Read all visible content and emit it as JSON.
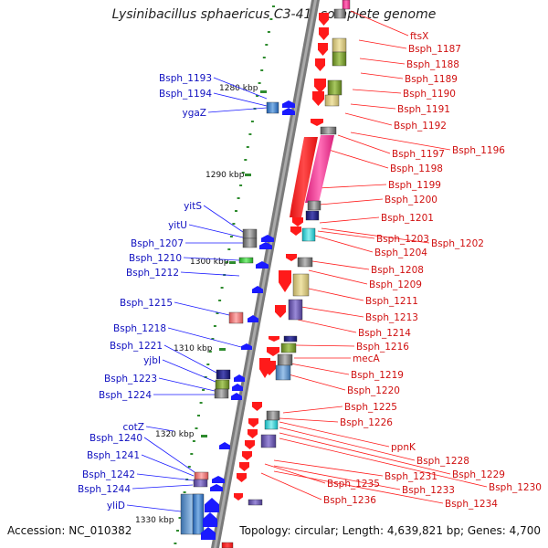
{
  "title": "Lysinibacillus sphaericus C3-41, complete genome",
  "footer": {
    "accession": "Accession: NC_010382",
    "topology": "Topology: circular; Length: 4,639,821 bp; Genes: 4,700"
  },
  "colors": {
    "forward_gene": "#1a1aff",
    "reverse_gene": "#ff1a1a",
    "backbone": "#7a7a7a",
    "tick": "#2e8b2e",
    "forward_label": "#1010c0",
    "reverse_label": "#d01010"
  },
  "scale_labels": [
    "1280 kbp",
    "1290 kbp",
    "1300 kbp",
    "1310 kbp",
    "1320 kbp",
    "1330 kbp"
  ],
  "forward_labels": [
    "Bsph_1193",
    "Bsph_1194",
    "ygaZ",
    "yitS",
    "yitU",
    "Bsph_1207",
    "Bsph_1210",
    "Bsph_1212",
    "Bsph_1215",
    "Bsph_1218",
    "Bsph_1221",
    "yjbI",
    "Bsph_1223",
    "Bsph_1224",
    "cotZ",
    "Bsph_1240",
    "Bsph_1241",
    "Bsph_1242",
    "Bsph_1244",
    "yliD"
  ],
  "reverse_labels": [
    "ftsX",
    "Bsph_1187",
    "Bsph_1188",
    "Bsph_1189",
    "Bsph_1190",
    "Bsph_1191",
    "Bsph_1192",
    "Bsph_1196",
    "Bsph_1197",
    "Bsph_1198",
    "Bsph_1199",
    "Bsph_1200",
    "Bsph_1201",
    "Bsph_1202",
    "Bsph_1203",
    "Bsph_1204",
    "Bsph_1208",
    "Bsph_1209",
    "Bsph_1211",
    "Bsph_1213",
    "Bsph_1214",
    "Bsph_1216",
    "mecA",
    "Bsph_1219",
    "Bsph_1220",
    "Bsph_1225",
    "Bsph_1226",
    "ppnK",
    "Bsph_1228",
    "Bsph_1229",
    "Bsph_1230",
    "Bsph_1231",
    "Bsph_1233",
    "Bsph_1234",
    "Bsph_1235",
    "Bsph_1236"
  ]
}
